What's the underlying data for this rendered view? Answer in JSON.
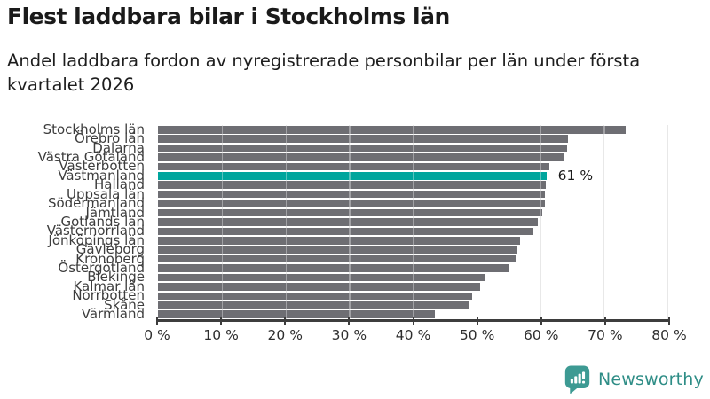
{
  "chart_data": {
    "type": "bar",
    "orientation": "horizontal",
    "title": "Flest laddbara bilar i Stockholms län",
    "subtitle_lines": [
      "Andel laddbara fordon av nyregistrerade personbilar per län under första",
      "kvartalet 2026"
    ],
    "categories": [
      "Stockholms län",
      "Örebro län",
      "Dalarna",
      "Västra Götaland",
      "Västerbotten",
      "Västmanland",
      "Halland",
      "Uppsala län",
      "Södermanland",
      "Jämtland",
      "Gotlands län",
      "Västernorrland",
      "Jönköpings län",
      "Gävleborg",
      "Kronoberg",
      "Östergötland",
      "Blekinge",
      "Kalmar län",
      "Norrbotten",
      "Skåne",
      "Värmland"
    ],
    "values": [
      73.5,
      64.4,
      64.2,
      63.9,
      61.4,
      61,
      60.9,
      60.8,
      60.7,
      60.4,
      59.6,
      59,
      56.8,
      56.3,
      56.1,
      55.2,
      51.4,
      50.6,
      49.3,
      48.8,
      43.5
    ],
    "unit": "%",
    "xlim": [
      0,
      80
    ],
    "x_ticks": [
      "0 %",
      "10 %",
      "20 %",
      "30 %",
      "40 %",
      "50 %",
      "60 %",
      "70 %",
      "80 %"
    ],
    "grid": true,
    "legend": "none",
    "bar_color": "#6e6e73",
    "gridline_color": "#dcdcdc",
    "axis_color": "#3d3d3d",
    "highlight": {
      "category": "Västmanland",
      "index": 5,
      "color": "#00a59d",
      "label": "61 %"
    }
  },
  "branding": {
    "name": "Newsworthy",
    "text_color": "#2e8d86",
    "icon_color": "#3d9a93",
    "icon": "newsworthy-bar-chart-bubble-icon"
  }
}
